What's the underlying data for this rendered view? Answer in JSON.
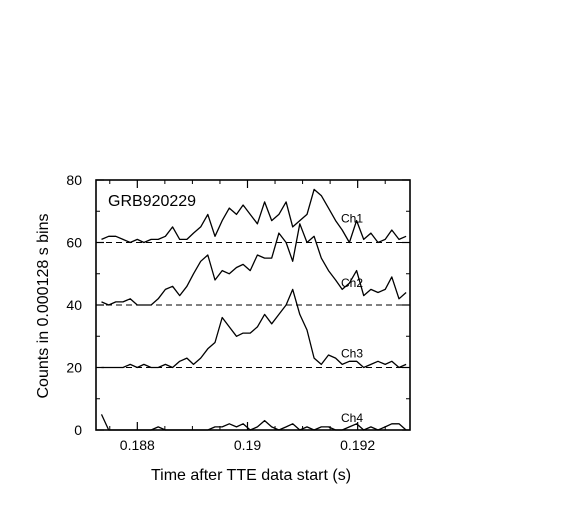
{
  "chart_data": {
    "type": "line",
    "title": "",
    "annotation": "GRB920229",
    "xlabel": "Time after TTE data start (s)",
    "ylabel": "Counts in 0.000128 s bins",
    "xlim": [
      0.18725,
      0.19295
    ],
    "ylim": [
      0,
      80
    ],
    "xticks": [
      0.188,
      0.19,
      0.192
    ],
    "xtick_labels": [
      "0.188",
      "0.19",
      "0.192"
    ],
    "yticks": [
      0,
      20,
      40,
      60,
      80
    ],
    "ytick_labels": [
      "0",
      "20",
      "40",
      "60",
      "80"
    ],
    "grid": false,
    "baselines": [
      60,
      40,
      20
    ],
    "x": [
      0.18735,
      0.18748,
      0.18761,
      0.18774,
      0.18787,
      0.188,
      0.18812,
      0.18825,
      0.18838,
      0.18851,
      0.18864,
      0.18877,
      0.1889,
      0.18902,
      0.18915,
      0.18928,
      0.18941,
      0.18954,
      0.18967,
      0.1898,
      0.18992,
      0.19005,
      0.19018,
      0.19031,
      0.19044,
      0.19057,
      0.1907,
      0.19082,
      0.19095,
      0.19108,
      0.19121,
      0.19134,
      0.19147,
      0.1916,
      0.19172,
      0.19185,
      0.19198,
      0.19211,
      0.19224,
      0.19237,
      0.1925,
      0.19262,
      0.19275,
      0.19288
    ],
    "series": [
      {
        "name": "Ch1",
        "values": [
          61,
          62,
          62,
          61,
          60,
          61,
          60,
          61,
          61,
          62,
          65,
          61,
          61,
          63,
          65,
          69,
          62,
          67,
          71,
          69,
          72,
          69,
          66,
          73,
          67,
          69,
          73,
          65,
          67,
          69,
          77,
          75,
          71,
          67,
          64,
          60,
          67,
          61,
          63,
          60,
          61,
          64,
          61,
          62
        ]
      },
      {
        "name": "Ch2",
        "values": [
          41,
          40,
          41,
          41,
          42,
          40,
          40,
          40,
          42,
          45,
          46,
          43,
          46,
          50,
          54,
          56,
          48,
          51,
          50,
          52,
          53,
          51,
          56,
          55,
          55,
          63,
          60,
          54,
          66,
          60,
          62,
          55,
          51,
          48,
          45,
          47,
          51,
          43,
          45,
          44,
          45,
          49,
          42,
          44
        ]
      },
      {
        "name": "Ch3",
        "values": [
          20,
          20,
          20,
          20,
          21,
          20,
          21,
          20,
          20,
          21,
          20,
          22,
          23,
          21,
          23,
          26,
          28,
          36,
          33,
          30,
          31,
          31,
          33,
          37,
          34,
          37,
          40,
          45,
          37,
          32,
          23,
          21,
          24,
          23,
          21,
          22,
          22,
          20,
          21,
          22,
          21,
          22,
          20,
          21
        ]
      },
      {
        "name": "Ch4",
        "values": [
          5,
          0,
          0,
          0,
          0,
          0,
          0,
          0,
          1,
          0,
          0,
          0,
          0,
          0,
          0,
          0,
          1,
          1,
          2,
          1,
          2,
          0,
          1,
          3,
          1,
          0,
          1,
          2,
          0,
          1,
          0,
          1,
          1,
          0,
          0,
          1,
          2,
          0,
          1,
          0,
          1,
          2,
          2,
          0
        ]
      }
    ]
  }
}
